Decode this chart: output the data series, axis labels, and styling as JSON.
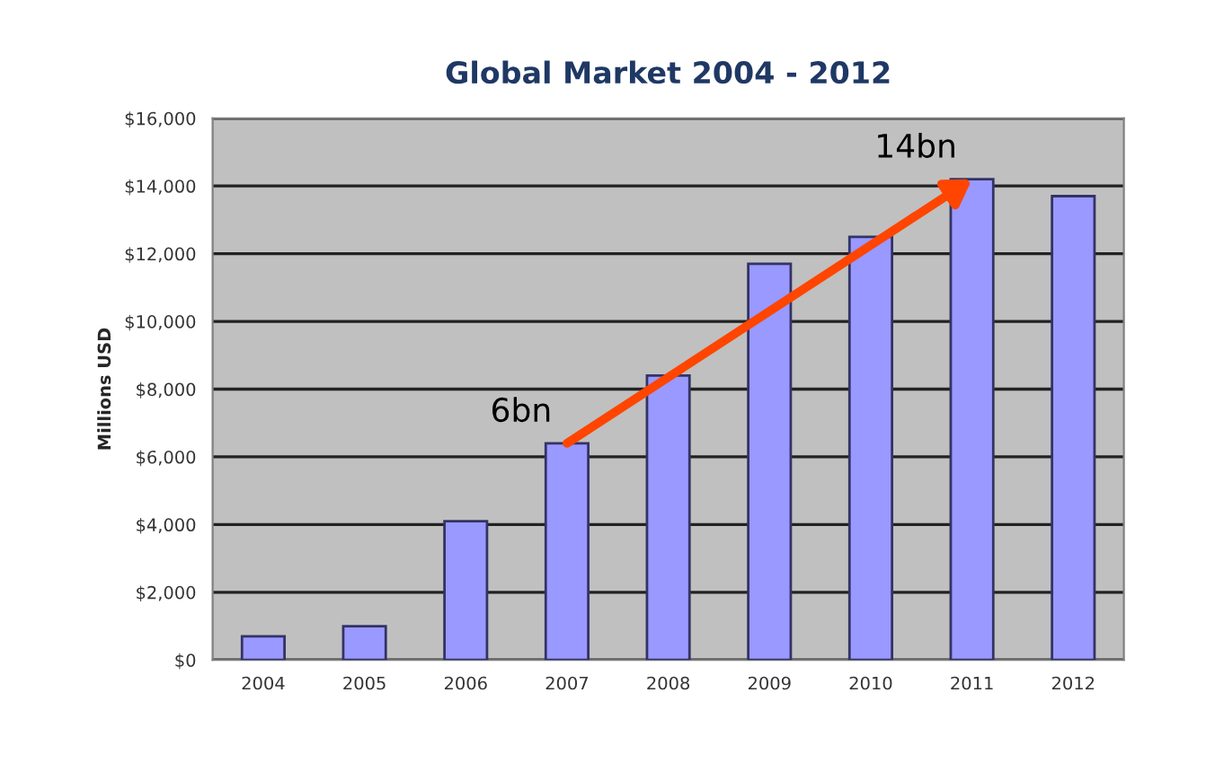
{
  "chart_data": {
    "type": "bar",
    "title": "Global Market 2004 - 2012",
    "ylabel": "Millions USD",
    "categories": [
      "2004",
      "2005",
      "2006",
      "2007",
      "2008",
      "2009",
      "2010",
      "2011",
      "2012"
    ],
    "values": [
      700,
      1000,
      4100,
      6400,
      8400,
      11700,
      12500,
      14200,
      13700
    ],
    "color": "#9999ff",
    "ylim": [
      0,
      16000
    ],
    "yticks": [
      {
        "value": 0,
        "label": "$0"
      },
      {
        "value": 2000,
        "label": "$2,000"
      },
      {
        "value": 4000,
        "label": "$4,000"
      },
      {
        "value": 6000,
        "label": "$6,000"
      },
      {
        "value": 8000,
        "label": "$8,000"
      },
      {
        "value": 10000,
        "label": "$10,000"
      },
      {
        "value": 12000,
        "label": "$12,000"
      },
      {
        "value": 14000,
        "label": "$14,000"
      },
      {
        "value": 16000,
        "label": "$16,000"
      }
    ],
    "grid": "y",
    "annotations": [
      {
        "text": "6bn",
        "x": "2007",
        "y": 6400
      },
      {
        "text": "14bn",
        "x": "2011",
        "y": 14200
      }
    ]
  }
}
